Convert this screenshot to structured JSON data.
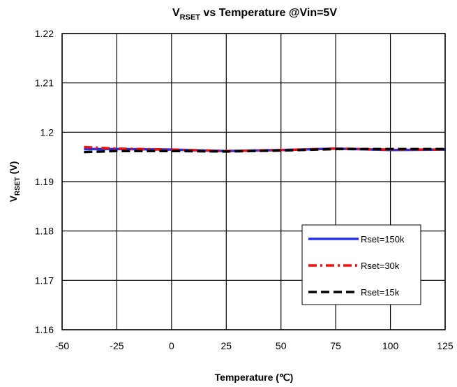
{
  "chart_data": {
    "type": "line",
    "title": {
      "main": "V",
      "sub": "RSET",
      "rest": " vs Temperature @Vin=5V"
    },
    "xlabel": "Temperature (℃)",
    "ylabel": {
      "main": "V",
      "sub": "RSET",
      "rest": " (V)"
    },
    "xlim": [
      -50,
      125
    ],
    "ylim": [
      1.16,
      1.22
    ],
    "xticks": [
      -50,
      -25,
      0,
      25,
      50,
      75,
      100,
      125
    ],
    "yticks": [
      1.16,
      1.17,
      1.18,
      1.19,
      1.2,
      1.21,
      1.22
    ],
    "xtick_labels": [
      "-50",
      "-25",
      "0",
      "25",
      "50",
      "75",
      "100",
      "125"
    ],
    "ytick_labels": [
      "1.16",
      "1.17",
      "1.18",
      "1.19",
      "1.2",
      "1.21",
      "1.22"
    ],
    "grid": true,
    "legend_position": "bottom-right",
    "series": [
      {
        "name": "Rset=150k",
        "color": "#2233ee",
        "style": "solid",
        "x": [
          -40,
          -25,
          0,
          25,
          50,
          75,
          100,
          125
        ],
        "y": [
          1.1966,
          1.1966,
          1.1965,
          1.1962,
          1.1964,
          1.1967,
          1.1964,
          1.1965
        ]
      },
      {
        "name": "Rset=30k",
        "color": "#ee1111",
        "style": "dashdot",
        "x": [
          -40,
          -25,
          0,
          25,
          50,
          75,
          100,
          125
        ],
        "y": [
          1.197,
          1.1967,
          1.1965,
          1.1962,
          1.1964,
          1.1967,
          1.1965,
          1.1965
        ]
      },
      {
        "name": "Rset=15k",
        "color": "#000000",
        "style": "dash",
        "x": [
          -40,
          -25,
          0,
          25,
          50,
          75,
          100,
          125
        ],
        "y": [
          1.196,
          1.1962,
          1.1962,
          1.1961,
          1.1963,
          1.1966,
          1.1966,
          1.1966
        ]
      }
    ]
  }
}
